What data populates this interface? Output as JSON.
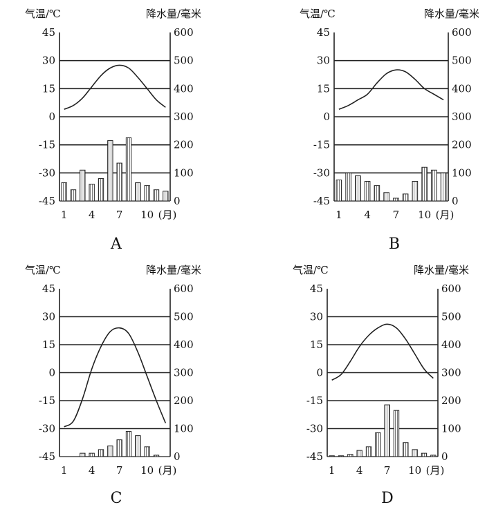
{
  "chart_data": [
    {
      "type": "bar+line",
      "panel_label": "A",
      "ylabel_left": "气温/℃",
      "ylabel_right": "降水量/毫米",
      "x_tick_labels": [
        "1",
        "4",
        "7",
        "10"
      ],
      "x_unit": "(月)",
      "ylim_left": [
        -45,
        45
      ],
      "ylim_right": [
        0,
        600
      ],
      "yticks_left": [
        "45",
        "30",
        "15",
        "0",
        "-15",
        "-30",
        "-45"
      ],
      "yticks_right": [
        "600",
        "500",
        "400",
        "300",
        "200",
        "100",
        "0"
      ],
      "grid": true,
      "months": [
        1,
        2,
        3,
        4,
        5,
        6,
        7,
        8,
        9,
        10,
        11,
        12
      ],
      "temperature": [
        4,
        6,
        10,
        16,
        22,
        26,
        27.5,
        26,
        21,
        15,
        9,
        5
      ],
      "precipitation": [
        65,
        40,
        110,
        60,
        80,
        215,
        135,
        225,
        65,
        55,
        40,
        35
      ]
    },
    {
      "type": "bar+line",
      "panel_label": "B",
      "ylabel_left": "气温/℃",
      "ylabel_right": "降水量/毫米",
      "x_tick_labels": [
        "1",
        "4",
        "7",
        "10"
      ],
      "x_unit": "(月)",
      "ylim_left": [
        -45,
        45
      ],
      "ylim_right": [
        0,
        600
      ],
      "yticks_left": [
        "45",
        "30",
        "15",
        "0",
        "-15",
        "-30",
        "-45"
      ],
      "yticks_right": [
        "600",
        "500",
        "400",
        "300",
        "200",
        "100",
        "0"
      ],
      "grid": true,
      "months": [
        1,
        2,
        3,
        4,
        5,
        6,
        7,
        8,
        9,
        10,
        11,
        12
      ],
      "temperature": [
        4,
        6,
        9,
        12,
        18,
        23,
        25,
        24,
        20,
        15,
        12,
        9
      ],
      "precipitation": [
        75,
        100,
        90,
        70,
        55,
        30,
        10,
        25,
        70,
        120,
        110,
        100
      ]
    },
    {
      "type": "bar+line",
      "panel_label": "C",
      "ylabel_left": "气温/℃",
      "ylabel_right": "降水量/毫米",
      "x_tick_labels": [
        "1",
        "4",
        "7",
        "10"
      ],
      "x_unit": "(月)",
      "ylim_left": [
        -45,
        45
      ],
      "ylim_right": [
        0,
        600
      ],
      "yticks_left": [
        "45",
        "30",
        "15",
        "0",
        "-15",
        "-30",
        "-45"
      ],
      "yticks_right": [
        "600",
        "500",
        "400",
        "300",
        "200",
        "100",
        "0"
      ],
      "grid": true,
      "months": [
        1,
        2,
        3,
        4,
        5,
        6,
        7,
        8,
        9,
        10,
        11,
        12
      ],
      "temperature": [
        -29,
        -26,
        -14,
        2,
        14,
        22,
        24,
        21,
        11,
        -2,
        -15,
        -27
      ],
      "precipitation": [
        0,
        0,
        12,
        12,
        25,
        38,
        60,
        90,
        75,
        35,
        5,
        0
      ]
    },
    {
      "type": "bar+line",
      "panel_label": "D",
      "ylabel_left": "气温/℃",
      "ylabel_right": "降水量/毫米",
      "x_tick_labels": [
        "1",
        "4",
        "7",
        "10"
      ],
      "x_unit": "(月)",
      "ylim_left": [
        -45,
        45
      ],
      "ylim_right": [
        0,
        600
      ],
      "yticks_left": [
        "45",
        "30",
        "15",
        "0",
        "-15",
        "-30",
        "-45"
      ],
      "yticks_right": [
        "600",
        "500",
        "400",
        "300",
        "200",
        "100",
        "0"
      ],
      "grid": true,
      "months": [
        1,
        2,
        3,
        4,
        5,
        6,
        7,
        8,
        9,
        10,
        11,
        12
      ],
      "temperature": [
        -4,
        -1,
        6,
        14,
        20,
        24,
        26,
        24,
        18,
        10,
        2,
        -3
      ],
      "precipitation": [
        3,
        3,
        8,
        22,
        35,
        85,
        185,
        165,
        50,
        25,
        12,
        5
      ]
    }
  ]
}
